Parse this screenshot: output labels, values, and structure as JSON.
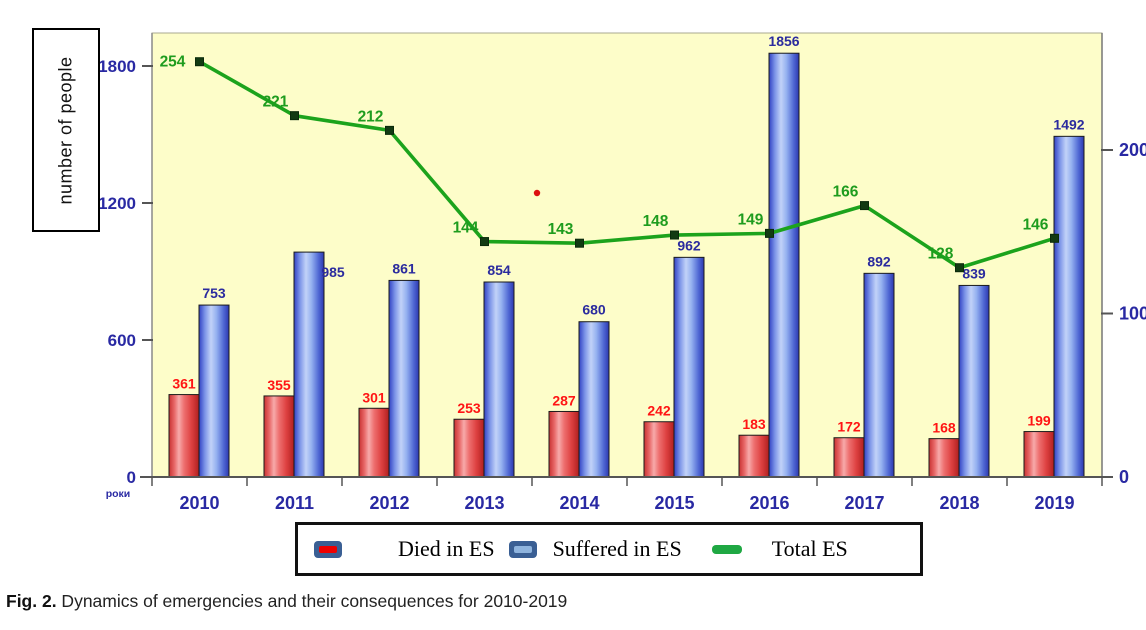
{
  "caption": {
    "label": "Fig. 2.",
    "text": " Dynamics of emergencies and their consequences for 2010-2019"
  },
  "chart_data": {
    "type": "bar+line",
    "categories": [
      "2010",
      "2011",
      "2012",
      "2013",
      "2014",
      "2015",
      "2016",
      "2017",
      "2018",
      "2019"
    ],
    "series": [
      {
        "name": "Died in ES",
        "type": "bar",
        "axis": "left",
        "label_color": "#FF1414",
        "values": [
          361,
          355,
          301,
          253,
          287,
          242,
          183,
          172,
          168,
          199
        ]
      },
      {
        "name": "Suffered in ES",
        "type": "bar",
        "axis": "left",
        "label_color": "#2B2B9E",
        "values": [
          753,
          985,
          861,
          854,
          680,
          962,
          1856,
          892,
          839,
          1492
        ]
      },
      {
        "name": "Total ES",
        "type": "line",
        "axis": "right",
        "color": "#1CA31C",
        "label_color": "#1E9C1E",
        "values": [
          254,
          221,
          212,
          144,
          143,
          148,
          149,
          166,
          128,
          146
        ]
      }
    ],
    "left_axis": {
      "title": "number of people",
      "ticks": [
        0,
        600,
        1200,
        1800
      ],
      "range": [
        0,
        1944
      ]
    },
    "right_axis": {
      "ticks": [
        0,
        100,
        200
      ],
      "range": [
        0,
        272
      ]
    },
    "x_axis": {
      "title": "роки"
    },
    "plot_background": "#FDFDC9",
    "axis_label_color": "#2929A3",
    "grid": false,
    "legend_position": "bottom"
  }
}
